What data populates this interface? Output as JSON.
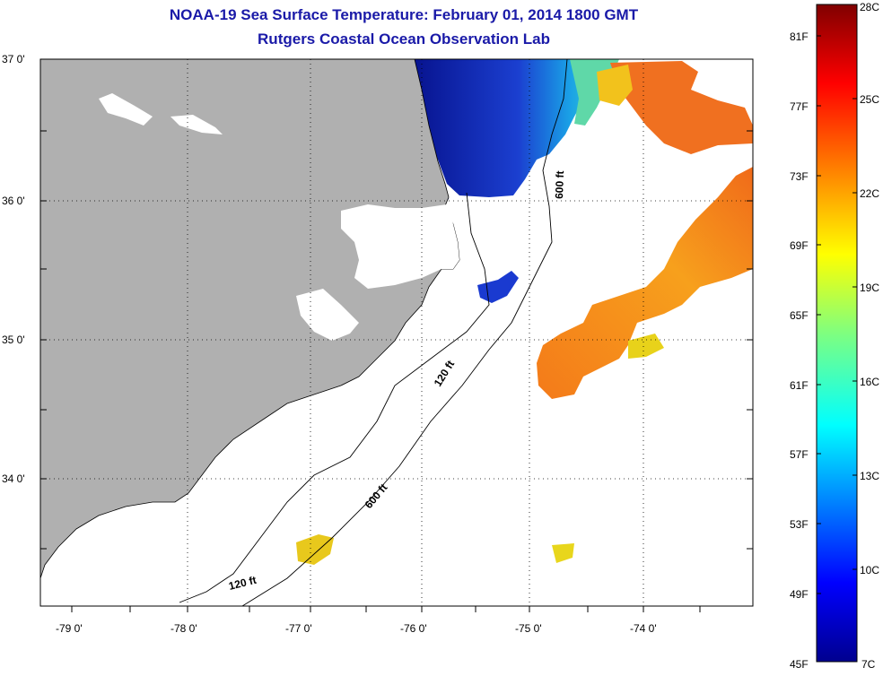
{
  "header": {
    "title": "NOAA-19 Sea Surface Temperature:  February 01, 2014 1800 GMT",
    "subtitle": "Rutgers Coastal Ocean Observation Lab"
  },
  "map": {
    "lat_labels": [
      "37 0'",
      "36 0'",
      "35 0'",
      "34 0'"
    ],
    "lon_labels": [
      "-79 0'",
      "-78 0'",
      "-77 0'",
      "-76 0'",
      "-75 0'",
      "-74 0'"
    ],
    "contour_labels": [
      "600 ft",
      "120 ft",
      "600 ft",
      "120 ft"
    ]
  },
  "colorbar": {
    "fahrenheit_labels": [
      "81F",
      "77F",
      "73F",
      "69F",
      "65F",
      "61F",
      "57F",
      "53F",
      "49F",
      "45F"
    ],
    "celsius_labels": [
      "28C",
      "25C",
      "22C",
      "19C",
      "16C",
      "13C",
      "10C",
      "7C"
    ]
  },
  "colors": {
    "title": "#1a1aa8",
    "land": "#b0b0b0",
    "ocean_cold": "#0a1a9c",
    "ocean_warm": "#f28c1c"
  }
}
